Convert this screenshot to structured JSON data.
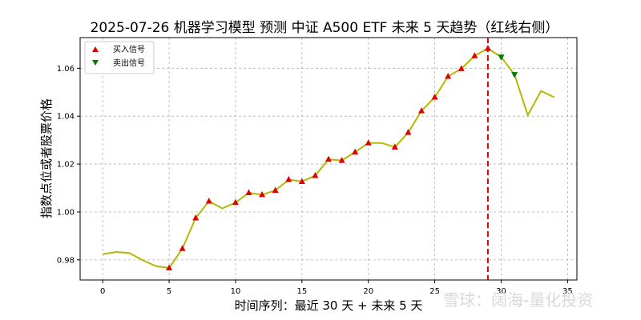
{
  "chart_data": {
    "type": "line",
    "title": "2025-07-26 机器学习模型 预测 中证 A500 ETF 未来 5 天趋势（红线右侧）",
    "xlabel": "时间序列：最近 30 天 + 未来 5 天",
    "ylabel": "指数点位或者股票价格",
    "xlim": [
      -1.7,
      35.7
    ],
    "ylim": [
      0.9716,
      1.0728
    ],
    "xticks": [
      0,
      5,
      10,
      15,
      20,
      25,
      30,
      35
    ],
    "yticks": [
      0.98,
      1.0,
      1.02,
      1.04,
      1.06
    ],
    "ytick_labels": [
      "0.98",
      "1.00",
      "1.02",
      "1.04",
      "1.06"
    ],
    "grid": true,
    "legend_position": "top-left",
    "colors": {
      "line": "#b5b800",
      "buy": "#e00000",
      "sell": "#007a00",
      "divider": "#e00000",
      "grid": "#b0b0b0"
    },
    "divider_x": 29,
    "series": [
      {
        "x": [
          0,
          1,
          2,
          3,
          4,
          5,
          6,
          7,
          8,
          9,
          10,
          11,
          12,
          13,
          14,
          15,
          16,
          17,
          18,
          19,
          20,
          21,
          22,
          23,
          24,
          25,
          26,
          27,
          28,
          29,
          30,
          31,
          32,
          33,
          34
        ],
        "values": [
          0.9824,
          0.9833,
          0.9829,
          0.9799,
          0.9774,
          0.9766,
          0.9847,
          0.9975,
          1.0045,
          1.0015,
          1.0039,
          1.008,
          1.0072,
          1.009,
          1.0135,
          1.0127,
          1.0152,
          1.022,
          1.0215,
          1.025,
          1.0288,
          1.0288,
          1.0271,
          1.0332,
          1.0422,
          1.0479,
          1.0566,
          1.0598,
          1.0652,
          1.0683,
          1.0647,
          1.0574,
          1.0404,
          1.0505,
          1.0479
        ]
      }
    ],
    "buy_signals": {
      "name": "买入信号",
      "x": [
        5,
        6,
        7,
        8,
        10,
        11,
        12,
        13,
        14,
        15,
        16,
        17,
        18,
        19,
        20,
        22,
        23,
        24,
        25,
        26,
        27,
        28,
        29
      ],
      "y": [
        0.9766,
        0.9847,
        0.9975,
        1.0045,
        1.0039,
        1.008,
        1.0072,
        1.009,
        1.0135,
        1.0127,
        1.0152,
        1.022,
        1.0215,
        1.025,
        1.0288,
        1.0271,
        1.0332,
        1.0422,
        1.0479,
        1.0566,
        1.0598,
        1.0652,
        1.0683
      ]
    },
    "sell_signals": {
      "name": "卖出信号",
      "x": [
        30,
        31
      ],
      "y": [
        1.0647,
        1.0574
      ]
    }
  },
  "watermark": "雪球：阔海-量化投资"
}
